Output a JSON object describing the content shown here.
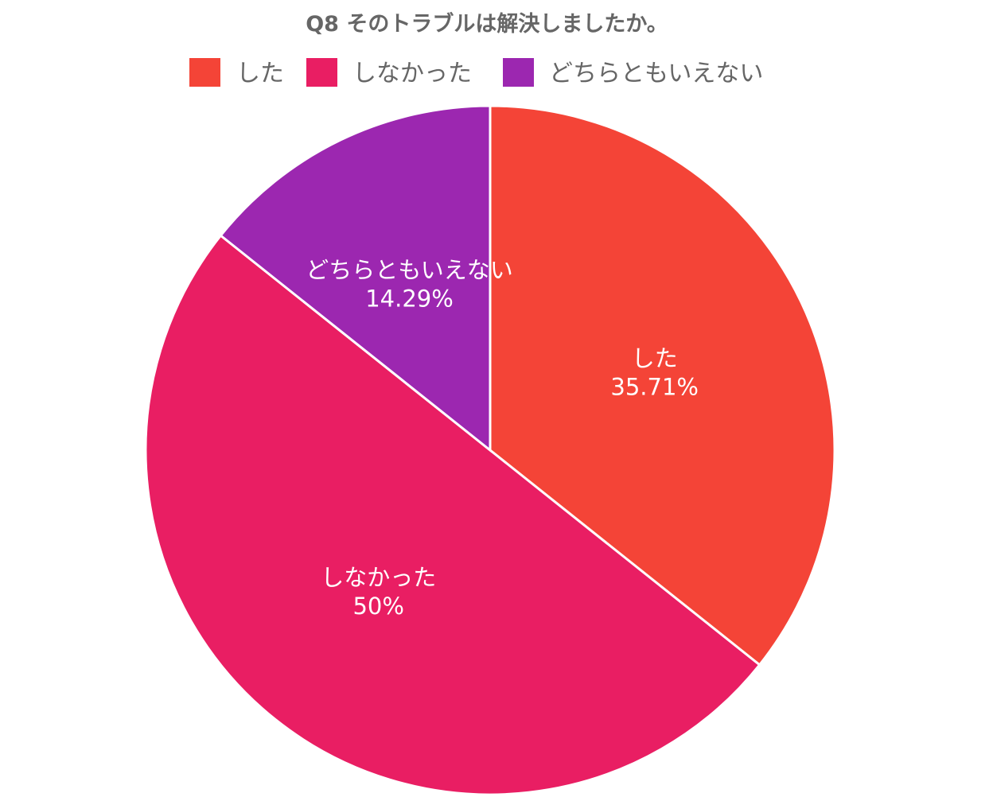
{
  "chart_data": {
    "type": "pie",
    "title": "Q8 そのトラブルは解決しましたか。",
    "legend_position": "top",
    "slices": [
      {
        "label": "した",
        "value": 35.71,
        "value_label": "35.71%",
        "color": "#F44437"
      },
      {
        "label": "しなかった",
        "value": 50,
        "value_label": "50%",
        "color": "#E91E63"
      },
      {
        "label": "どちらともいえない",
        "value": 14.29,
        "value_label": "14.29%",
        "color": "#9C27B0"
      }
    ]
  }
}
